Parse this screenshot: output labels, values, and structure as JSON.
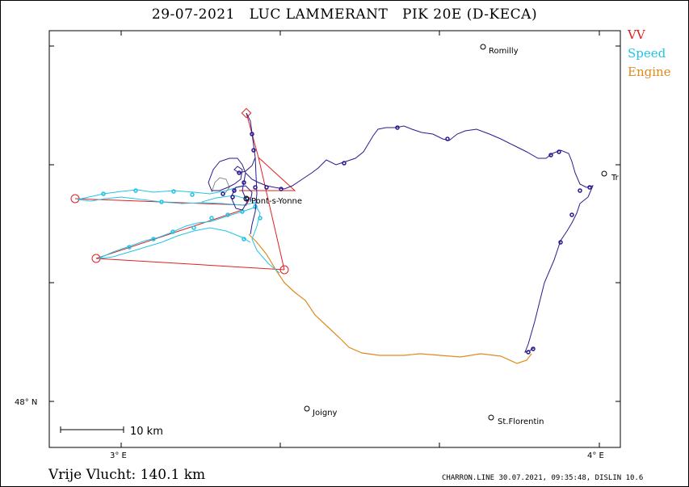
{
  "header": {
    "title": "29-07-2021   LUC LAMMERANT   PIK 20E (D-KECA)"
  },
  "legend": [
    {
      "label": "VV",
      "color": "#e02020"
    },
    {
      "label": "Speed",
      "color": "#22c4e6"
    },
    {
      "label": "Engine",
      "color": "#e08a1e"
    }
  ],
  "axes": {
    "lat_tick": "48° N",
    "lon_ticks": [
      "3° E",
      "4° E"
    ]
  },
  "towns": {
    "romilly": "Romilly",
    "troyes": "Tr",
    "pont": "Pont-s-Yonne",
    "joigny": "Joigny",
    "stflorentin": "St.Florentin"
  },
  "scale": {
    "label": "10  km"
  },
  "footer": {
    "distance": "Vrije Vlucht:  140.1 km",
    "credit": "CHARRON.LINE 30.07.2021, 09:35:48, DISLIN 10.6"
  },
  "colors": {
    "track_main": "#2a1a8c",
    "track_speed": "#22c4e6",
    "track_engine": "#e08a1e",
    "task_line": "#e02020",
    "thermal_grey": "#888888"
  }
}
